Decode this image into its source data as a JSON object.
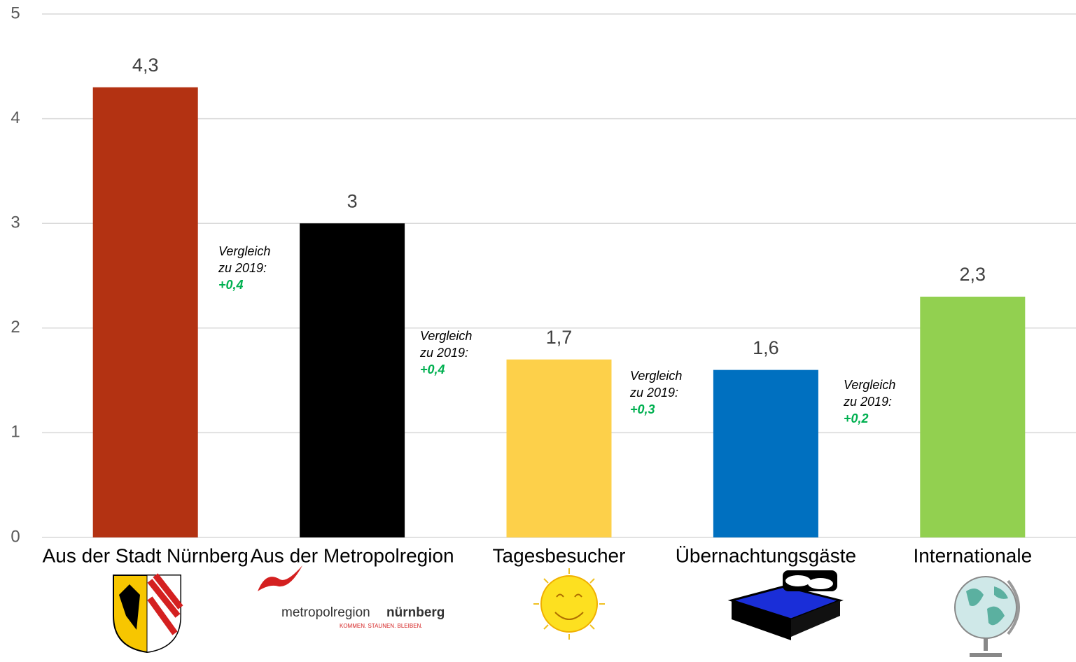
{
  "chart_data": {
    "type": "bar",
    "categories": [
      "Aus der Stadt Nürnberg",
      "Aus der Metropolregion",
      "Tagesbesucher",
      "Übernachtungsgäste",
      "Internationale"
    ],
    "values": [
      4.3,
      3,
      1.7,
      1.6,
      2.3
    ],
    "value_labels": [
      "4,3",
      "3",
      "1,7",
      "1,6",
      "2,3"
    ],
    "colors": [
      "#b33212",
      "#000000",
      "#fdd04a",
      "#0070c0",
      "#92d050"
    ],
    "ylim": [
      0,
      5
    ],
    "yticks": [
      0,
      1,
      2,
      3,
      4,
      5
    ],
    "grid": true,
    "annotations": [
      {
        "lines": [
          "Vergleich",
          "zu 2019:"
        ],
        "delta": "+0,4"
      },
      {
        "lines": [
          "Vergleich",
          "zu 2019:"
        ],
        "delta": "+0,4"
      },
      {
        "lines": [
          "Vergleich",
          "zu 2019:"
        ],
        "delta": "+0,3"
      },
      {
        "lines": [
          "Vergleich",
          "zu 2019:"
        ],
        "delta": "+0,2"
      }
    ],
    "logo_texts": [
      "metropolregion",
      "nürnberg",
      "KOMMEN. STAUNEN. BLEIBEN."
    ]
  }
}
